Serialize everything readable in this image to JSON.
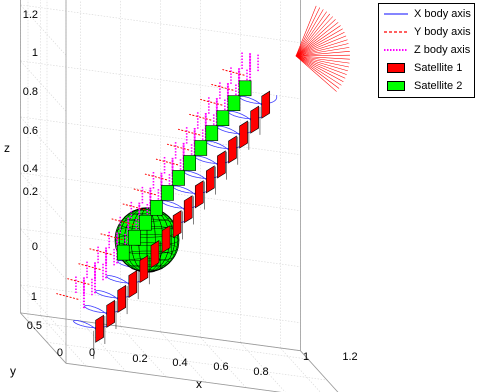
{
  "chart_data": {
    "type": "3d-trajectory",
    "title": "",
    "xlabel": "x",
    "ylabel": "y",
    "zlabel": "z",
    "xticks": [
      "0",
      "0.2",
      "0.4",
      "0.6",
      "0.8",
      "1",
      "1.2"
    ],
    "yticks": [
      "0",
      "0.5",
      "1"
    ],
    "zticks": [
      "0",
      "0.2",
      "0.4",
      "0.6",
      "0.8",
      "1",
      "1.2"
    ],
    "xlim": [
      -0.1,
      1.3
    ],
    "ylim": [
      0,
      1.2
    ],
    "zlim": [
      -0.1,
      1.2
    ],
    "grid": true,
    "legend_position": "top-right",
    "series": [
      {
        "name": "X body axis",
        "style": "solid line",
        "color": "#3c3cff"
      },
      {
        "name": "Y body axis",
        "style": "dashed line",
        "color": "#ff0000"
      },
      {
        "name": "Z body axis",
        "style": "dotted line",
        "color": "#ff00ff"
      },
      {
        "name": "Satellite 1",
        "style": "filled box",
        "color": "#ff0000"
      },
      {
        "name": "Satellite 2",
        "style": "filled box",
        "color": "#00ff00"
      }
    ],
    "satellite_count_per_series": 16,
    "central_body": "green wireframe sphere"
  }
}
